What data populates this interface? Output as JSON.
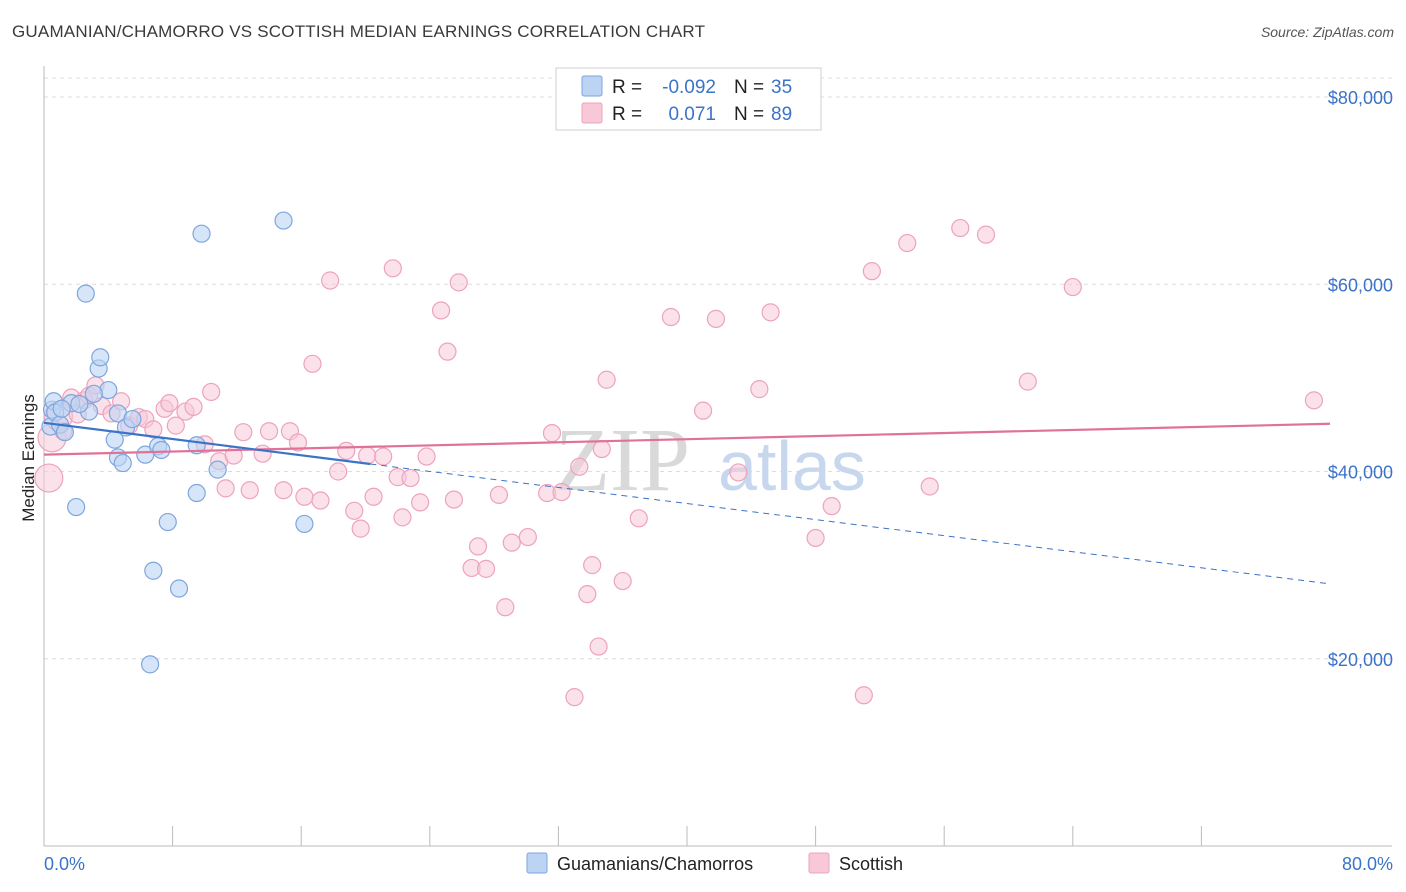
{
  "title": "GUAMANIAN/CHAMORRO VS SCOTTISH MEDIAN EARNINGS CORRELATION CHART",
  "source": "Source: ZipAtlas.com",
  "watermark": {
    "part1": "ZIP",
    "part2": "atlas"
  },
  "colors": {
    "blue": "#3b73c8",
    "blue_fill": "#bcd3f3",
    "blue_stroke": "#7ea6de",
    "pink": "#e0729a",
    "pink_fill": "#f8c8d8",
    "pink_stroke": "#eda3bd",
    "grid": "#dcdcdc",
    "axis_label": "#3b73c8"
  },
  "legend": {
    "rows": [
      {
        "r_label": "R =",
        "r_value": "-0.092",
        "n_label": "N =",
        "n_value": "35"
      },
      {
        "r_label": "R =",
        "r_value": "0.071",
        "n_label": "N =",
        "n_value": "89"
      }
    ]
  },
  "bottom_legend": {
    "items": [
      "Guamanians/Chamorros",
      "Scottish"
    ]
  },
  "chart_data": {
    "type": "scatter",
    "title": "GUAMANIAN/CHAMORRO VS SCOTTISH MEDIAN EARNINGS CORRELATION CHART",
    "xlabel": "",
    "ylabel": "Median Earnings",
    "xlim": [
      0,
      80
    ],
    "ylim": [
      0,
      82000
    ],
    "x_tick_labels": [
      "0.0%",
      "80.0%"
    ],
    "y_ticks": [
      20000,
      40000,
      60000,
      80000
    ],
    "y_tick_labels": [
      "$20,000",
      "$40,000",
      "$60,000",
      "$80,000"
    ],
    "grid": true,
    "legend_position": "top-center",
    "series": [
      {
        "name": "Guamanians/Chamorros",
        "r": -0.092,
        "n": 35,
        "trend_solid": [
          [
            0,
            45200
          ],
          [
            20.3,
            40800
          ]
        ],
        "trend_dashed": [
          [
            20.3,
            40800
          ],
          [
            80,
            28000
          ]
        ],
        "points": [
          [
            0.4,
            44800
          ],
          [
            0.5,
            46600
          ],
          [
            0.6,
            47500
          ],
          [
            0.7,
            46300
          ],
          [
            1.0,
            45000
          ],
          [
            1.3,
            44200
          ],
          [
            1.7,
            47300
          ],
          [
            2.0,
            36200
          ],
          [
            2.6,
            59000
          ],
          [
            2.8,
            46400
          ],
          [
            3.4,
            51000
          ],
          [
            3.5,
            52200
          ],
          [
            4.0,
            48700
          ],
          [
            4.4,
            43400
          ],
          [
            4.6,
            46200
          ],
          [
            4.6,
            41500
          ],
          [
            4.9,
            40900
          ],
          [
            5.1,
            44700
          ],
          [
            5.5,
            45600
          ],
          [
            6.3,
            41800
          ],
          [
            6.6,
            19400
          ],
          [
            6.8,
            29400
          ],
          [
            7.1,
            42700
          ],
          [
            7.3,
            42300
          ],
          [
            7.7,
            34600
          ],
          [
            8.4,
            27500
          ],
          [
            9.5,
            37700
          ],
          [
            9.5,
            42800
          ],
          [
            9.8,
            65400
          ],
          [
            10.8,
            40200
          ],
          [
            14.9,
            66800
          ],
          [
            16.2,
            34400
          ],
          [
            3.1,
            48300
          ],
          [
            1.1,
            46700
          ],
          [
            2.2,
            47200
          ]
        ]
      },
      {
        "name": "Scottish",
        "r": 0.071,
        "n": 89,
        "trend_solid": [
          [
            0,
            41800
          ],
          [
            80,
            45100
          ]
        ],
        "points": [
          [
            0.3,
            39300
          ],
          [
            0.5,
            43600
          ],
          [
            0.9,
            45900
          ],
          [
            1.2,
            44300
          ],
          [
            1.7,
            47900
          ],
          [
            2.1,
            46100
          ],
          [
            2.5,
            47600
          ],
          [
            2.8,
            48100
          ],
          [
            3.2,
            49200
          ],
          [
            3.6,
            47000
          ],
          [
            4.2,
            46200
          ],
          [
            4.8,
            47500
          ],
          [
            5.3,
            44900
          ],
          [
            5.9,
            45800
          ],
          [
            6.3,
            45600
          ],
          [
            6.8,
            44500
          ],
          [
            7.5,
            46700
          ],
          [
            7.8,
            47300
          ],
          [
            8.2,
            44900
          ],
          [
            8.8,
            46400
          ],
          [
            9.3,
            46900
          ],
          [
            10.0,
            42900
          ],
          [
            10.4,
            48500
          ],
          [
            10.9,
            41100
          ],
          [
            11.3,
            38200
          ],
          [
            11.8,
            41700
          ],
          [
            12.4,
            44200
          ],
          [
            12.8,
            38000
          ],
          [
            13.6,
            41900
          ],
          [
            14.0,
            44300
          ],
          [
            14.9,
            38000
          ],
          [
            15.3,
            44300
          ],
          [
            15.8,
            43100
          ],
          [
            16.2,
            37300
          ],
          [
            16.7,
            51500
          ],
          [
            17.2,
            36900
          ],
          [
            17.8,
            60400
          ],
          [
            18.3,
            40000
          ],
          [
            18.8,
            42200
          ],
          [
            19.3,
            35800
          ],
          [
            19.7,
            33900
          ],
          [
            20.1,
            41700
          ],
          [
            20.5,
            37300
          ],
          [
            21.1,
            41600
          ],
          [
            21.7,
            61700
          ],
          [
            22.0,
            39400
          ],
          [
            22.3,
            35100
          ],
          [
            22.8,
            39300
          ],
          [
            23.4,
            36700
          ],
          [
            23.8,
            41600
          ],
          [
            24.7,
            57200
          ],
          [
            25.1,
            52800
          ],
          [
            25.5,
            37000
          ],
          [
            25.8,
            60200
          ],
          [
            26.6,
            29700
          ],
          [
            27.0,
            32000
          ],
          [
            27.5,
            29600
          ],
          [
            28.3,
            37500
          ],
          [
            28.7,
            25500
          ],
          [
            29.1,
            32400
          ],
          [
            30.1,
            33000
          ],
          [
            31.3,
            37700
          ],
          [
            31.6,
            44100
          ],
          [
            32.2,
            37800
          ],
          [
            33.0,
            15900
          ],
          [
            33.3,
            40500
          ],
          [
            33.8,
            26900
          ],
          [
            34.1,
            30000
          ],
          [
            34.5,
            21300
          ],
          [
            34.7,
            42400
          ],
          [
            35.0,
            49800
          ],
          [
            36.0,
            28300
          ],
          [
            37.0,
            35000
          ],
          [
            39.0,
            56500
          ],
          [
            41.0,
            46500
          ],
          [
            41.8,
            56300
          ],
          [
            43.2,
            39900
          ],
          [
            44.5,
            48800
          ],
          [
            45.2,
            57000
          ],
          [
            48.0,
            32900
          ],
          [
            49.0,
            36300
          ],
          [
            51.0,
            16100
          ],
          [
            51.5,
            61400
          ],
          [
            53.7,
            64400
          ],
          [
            55.1,
            38400
          ],
          [
            57.0,
            66000
          ],
          [
            58.6,
            65300
          ],
          [
            61.2,
            49600
          ],
          [
            64.0,
            59700
          ],
          [
            79.0,
            47600
          ]
        ]
      }
    ]
  }
}
